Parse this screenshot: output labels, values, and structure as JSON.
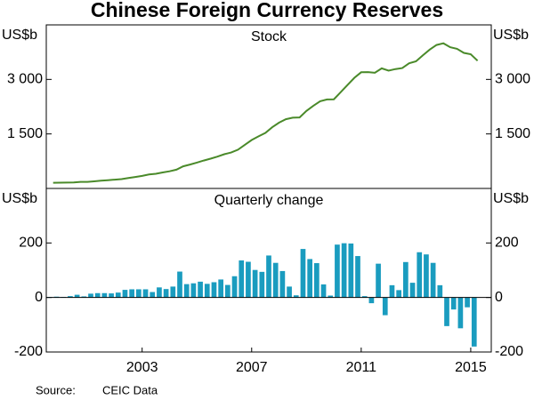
{
  "title": "Chinese Foreign Currency Reserves",
  "source_label": "Source:",
  "source": "CEIC Data",
  "chart_data": [
    {
      "type": "line",
      "subtitle": "Stock",
      "ylabel": "US$b",
      "color": "#4a8a2a",
      "x": [
        2000.25,
        2000.5,
        2000.75,
        2001,
        2001.25,
        2001.5,
        2001.75,
        2002,
        2002.25,
        2002.5,
        2002.75,
        2003,
        2003.25,
        2003.5,
        2003.75,
        2004,
        2004.25,
        2004.5,
        2004.75,
        2005,
        2005.25,
        2005.5,
        2005.75,
        2006,
        2006.25,
        2006.5,
        2006.75,
        2007,
        2007.25,
        2007.5,
        2007.75,
        2008,
        2008.25,
        2008.5,
        2008.75,
        2009,
        2009.25,
        2009.5,
        2009.75,
        2010,
        2010.25,
        2010.5,
        2010.75,
        2011,
        2011.25,
        2011.5,
        2011.75,
        2012,
        2012.25,
        2012.5,
        2012.75,
        2013,
        2013.25,
        2013.5,
        2013.75,
        2014,
        2014.25,
        2014.5,
        2014.75,
        2015,
        2015.25,
        2015.5,
        2015.75
      ],
      "values": [
        157,
        160,
        162,
        166,
        180,
        180,
        196,
        212,
        228,
        243,
        258,
        286,
        316,
        346,
        384,
        403,
        440,
        471,
        515,
        610,
        659,
        711,
        769,
        819,
        875,
        941,
        988,
        1066,
        1202,
        1333,
        1434,
        1528,
        1682,
        1809,
        1906,
        1946,
        1954,
        2132,
        2273,
        2399,
        2447,
        2454,
        2648,
        2847,
        3045,
        3197,
        3202,
        3181,
        3305,
        3240,
        3285,
        3312,
        3443,
        3497,
        3663,
        3821,
        3948,
        3993,
        3887,
        3843,
        3730,
        3694,
        3514
      ],
      "xlim": [
        2000,
        2016.25
      ],
      "ylim": [
        0,
        4500
      ],
      "yticks": [
        {
          "value": 1500,
          "label": "1 500"
        },
        {
          "value": 3000,
          "label": "3 000"
        }
      ]
    },
    {
      "type": "bar",
      "subtitle": "Quarterly change",
      "ylabel": "US$b",
      "color": "#1a9cbf",
      "x": [
        2000.25,
        2000.5,
        2000.75,
        2001,
        2001.25,
        2001.5,
        2001.75,
        2002,
        2002.25,
        2002.5,
        2002.75,
        2003,
        2003.25,
        2003.5,
        2003.75,
        2004,
        2004.25,
        2004.5,
        2004.75,
        2005,
        2005.25,
        2005.5,
        2005.75,
        2006,
        2006.25,
        2006.5,
        2006.75,
        2007,
        2007.25,
        2007.5,
        2007.75,
        2008,
        2008.25,
        2008.5,
        2008.75,
        2009,
        2009.25,
        2009.5,
        2009.75,
        2010,
        2010.25,
        2010.5,
        2010.75,
        2011,
        2011.25,
        2011.5,
        2011.75,
        2012,
        2012.25,
        2012.5,
        2012.75,
        2013,
        2013.25,
        2013.5,
        2013.75,
        2014,
        2014.25,
        2014.5,
        2014.75,
        2015,
        2015.25,
        2015.5,
        2015.75
      ],
      "values": [
        2,
        3,
        2,
        5,
        10,
        4,
        14,
        16,
        16,
        15,
        18,
        28,
        30,
        30,
        30,
        20,
        37,
        31,
        40,
        95,
        49,
        52,
        58,
        50,
        56,
        66,
        46,
        78,
        136,
        131,
        101,
        94,
        154,
        127,
        97,
        40,
        8,
        178,
        141,
        126,
        48,
        7,
        194,
        199,
        198,
        152,
        5,
        -21,
        124,
        -65,
        45,
        27,
        130,
        54,
        166,
        158,
        127,
        45,
        -105,
        -44,
        -113,
        -36,
        -180
      ],
      "xlim": [
        2000,
        2016.25
      ],
      "ylim": [
        -200,
        400
      ],
      "yticks": [
        -200,
        0,
        200
      ],
      "xticks": [
        {
          "value": 2003.5,
          "label": "2003"
        },
        {
          "value": 2007.5,
          "label": "2007"
        },
        {
          "value": 2011.5,
          "label": "2011"
        },
        {
          "value": 2015.5,
          "label": "2015"
        }
      ]
    }
  ]
}
